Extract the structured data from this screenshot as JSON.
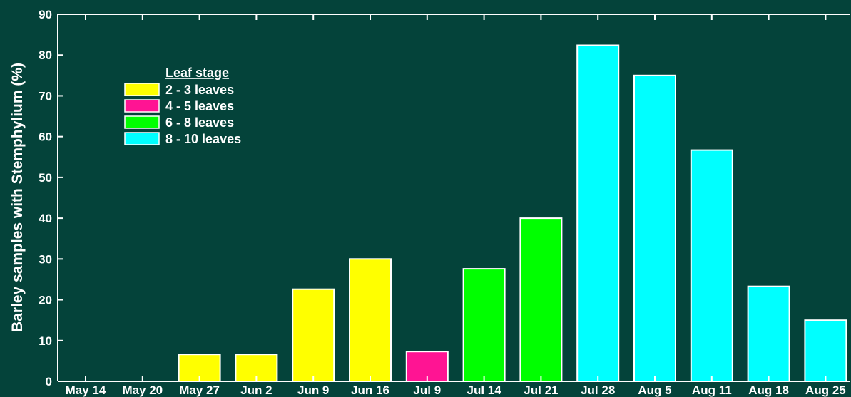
{
  "chart_data": {
    "type": "bar",
    "title": "",
    "xlabel": "",
    "ylabel": "Barley samples with Stemphylium (%)",
    "ylim": [
      0,
      90
    ],
    "yticks": [
      0,
      10,
      20,
      30,
      40,
      50,
      60,
      70,
      80,
      90
    ],
    "grid": false,
    "legend_position": "top-left",
    "legend_title": "Leaf stage",
    "legend": [
      {
        "label": "2 - 3 leaves",
        "color": "#ffff00"
      },
      {
        "label": "4 - 5 leaves",
        "color": "#ff1493"
      },
      {
        "label": "6 - 8 leaves",
        "color": "#00ff00"
      },
      {
        "label": "8 - 10 leaves",
        "color": "#00ffff"
      }
    ],
    "categories": [
      "May 14",
      "May 20",
      "May 27",
      "Jun 2",
      "Jun 9",
      "Jun 16",
      "Jul 9",
      "Jul 14",
      "Jul 21",
      "Jul 28",
      "Aug 5",
      "Aug 11",
      "Aug 18",
      "Aug 25"
    ],
    "values": [
      0,
      0,
      6.6,
      6.6,
      22.6,
      30,
      7.3,
      27.6,
      40,
      82.4,
      75,
      56.7,
      23.3,
      15
    ],
    "bar_colors": [
      "#ffff00",
      "#ffff00",
      "#ffff00",
      "#ffff00",
      "#ffff00",
      "#ffff00",
      "#ff1493",
      "#00ff00",
      "#00ff00",
      "#00ffff",
      "#00ffff",
      "#00ffff",
      "#00ffff",
      "#00ffff"
    ],
    "colors": {
      "background": "#04433a",
      "axis": "#ffffff",
      "bar_outline": "#ffffff"
    }
  }
}
